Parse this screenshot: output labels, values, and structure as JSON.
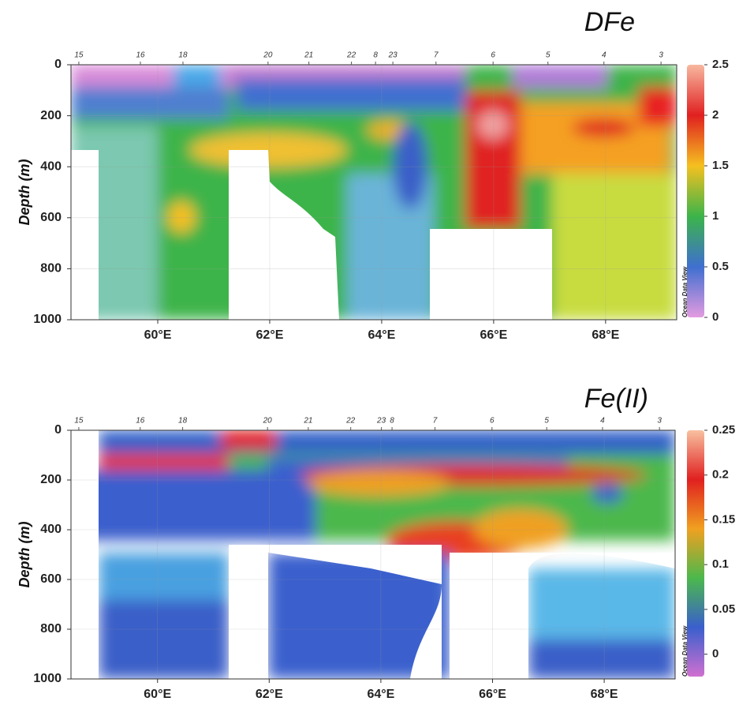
{
  "chart_data": [
    {
      "type": "contour",
      "title": "DFe",
      "y_label": "Depth (m)",
      "watermark": "Ocean Data View",
      "xlim": [
        58.45,
        69.27
      ],
      "ylim": [
        1000,
        0
      ],
      "xticks": [
        {
          "value": 60,
          "label": "60°E"
        },
        {
          "value": 62,
          "label": "62°E"
        },
        {
          "value": 64,
          "label": "64°E"
        },
        {
          "value": 66,
          "label": "66°E"
        },
        {
          "value": 68,
          "label": "68°E"
        }
      ],
      "yticks": [
        0,
        200,
        400,
        600,
        800,
        1000
      ],
      "grid": true,
      "stations": {
        "labels": [
          "15",
          "16",
          "18",
          "20",
          "21",
          "22",
          "8",
          "23",
          "7",
          "6",
          "5",
          "4",
          "3"
        ],
        "x": [
          58.59,
          59.69,
          60.45,
          61.97,
          62.7,
          63.46,
          63.89,
          64.2,
          64.97,
          65.99,
          66.97,
          67.97,
          68.99
        ]
      },
      "colorbar": {
        "lim": [
          0,
          2.5
        ],
        "ticks": [
          0,
          0.5,
          1,
          1.5,
          2,
          2.5
        ],
        "colormap": [
          "#e49be0",
          "#3f6fd0",
          "#3cb44a",
          "#f5c020",
          "#e02020",
          "#f8b8a0"
        ]
      }
    },
    {
      "type": "contour",
      "title": "Fe(II)",
      "y_label": "Depth (m)",
      "watermark": "Ocean Data View",
      "xlim": [
        58.45,
        69.27
      ],
      "ylim": [
        1000,
        0
      ],
      "xticks": [
        {
          "value": 60,
          "label": "60°E"
        },
        {
          "value": 62,
          "label": "62°E"
        },
        {
          "value": 64,
          "label": "64°E"
        },
        {
          "value": 66,
          "label": "66°E"
        },
        {
          "value": 68,
          "label": "68°E"
        }
      ],
      "yticks": [
        0,
        200,
        400,
        600,
        800,
        1000
      ],
      "grid": true,
      "stations": {
        "labels": [
          "15",
          "16",
          "18",
          "20",
          "21",
          "22",
          "23",
          "8",
          "7",
          "6",
          "5",
          "4",
          "3"
        ],
        "x": [
          58.59,
          59.69,
          60.45,
          61.97,
          62.7,
          63.46,
          64.01,
          64.2,
          64.97,
          65.99,
          66.97,
          67.97,
          68.99
        ]
      },
      "colorbar": {
        "lim": [
          -0.025,
          0.25
        ],
        "ticks": [
          0,
          0.05,
          0.1,
          0.15,
          0.2,
          0.25
        ],
        "colormap": [
          "#d070d0",
          "#3a5fcd",
          "#4cb84c",
          "#f0a020",
          "#e02020",
          "#f8c0a0"
        ]
      }
    }
  ]
}
